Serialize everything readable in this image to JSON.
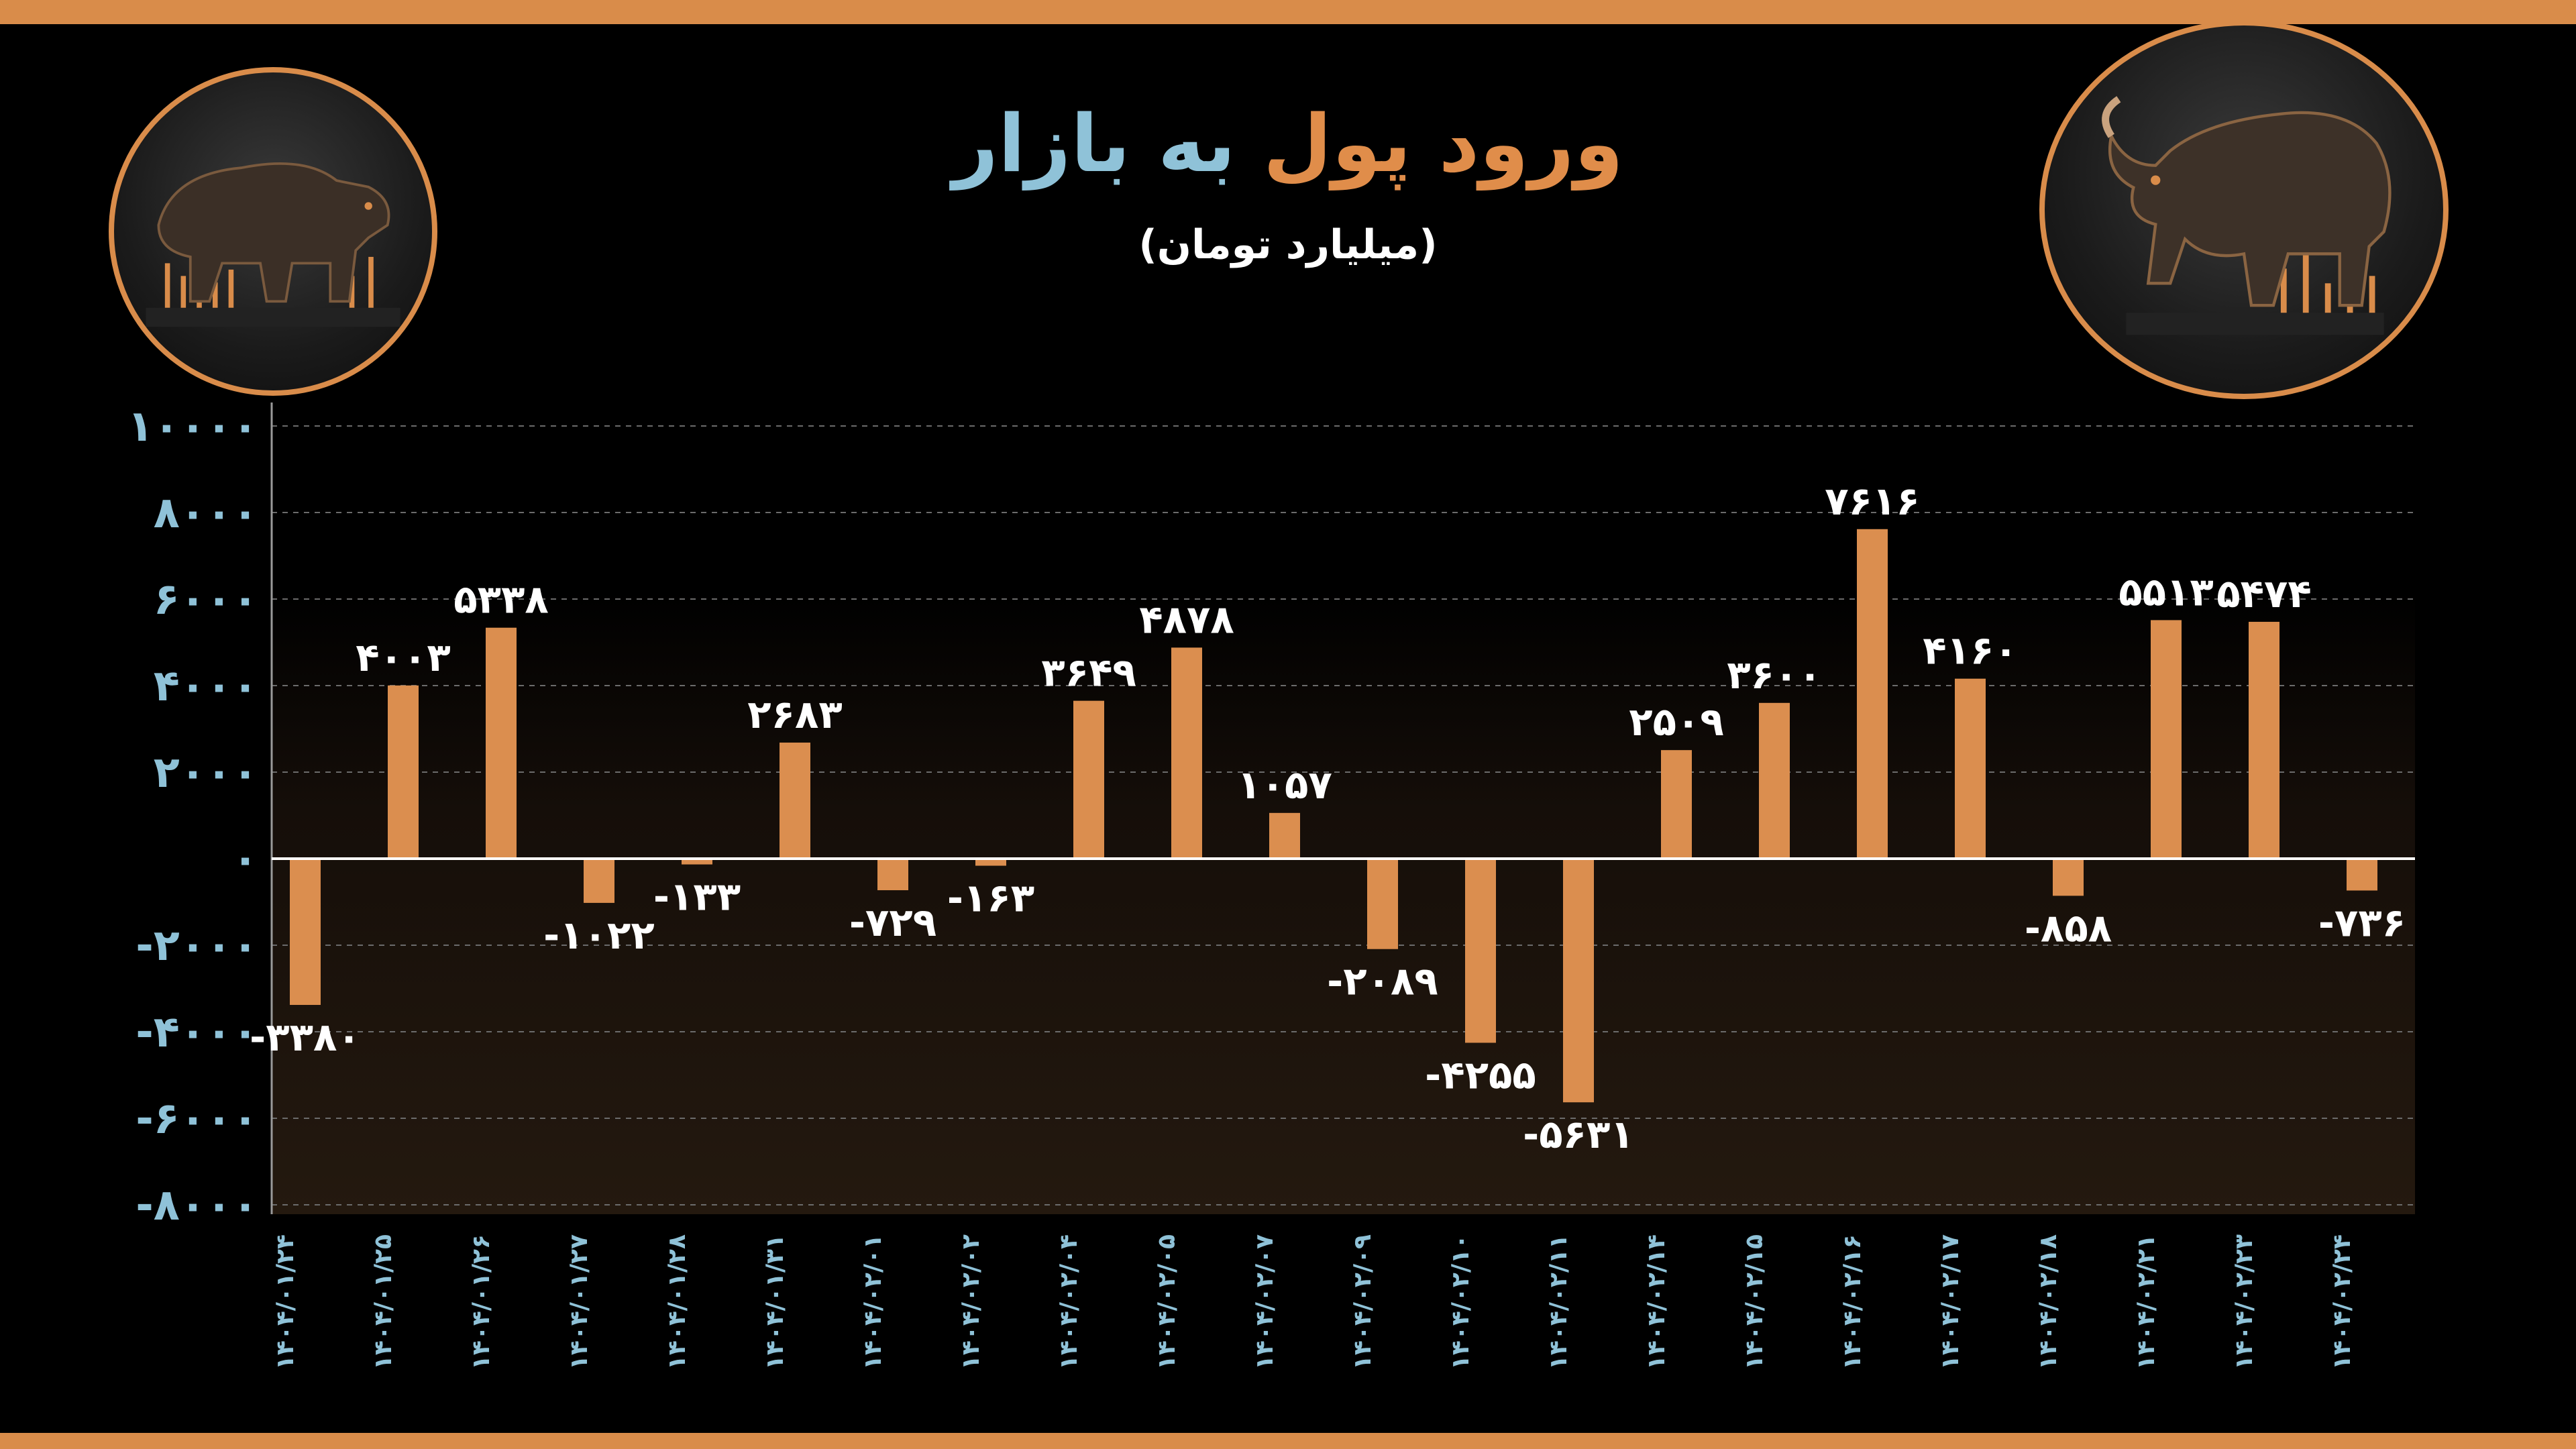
{
  "title_part1": "ورود پول",
  "title_part2": "به بازار",
  "subtitle": "(میلیارد تومان)",
  "colors": {
    "background": "#000000",
    "frame": "#d98c4a",
    "bar": "#db8e4f",
    "axis_label": "#8fc2d8",
    "value_label": "#ffffff",
    "title_accent": "#e08d4a",
    "title_secondary": "#8fc2d8"
  },
  "images": {
    "left": "bear-medallion",
    "right": "bull-medallion"
  },
  "chart_data": {
    "type": "bar",
    "categories": [
      "۱۴۰۴/۰۱/۲۴",
      "۱۴۰۴/۰۱/۲۵",
      "۱۴۰۴/۰۱/۲۶",
      "۱۴۰۴/۰۱/۲۷",
      "۱۴۰۴/۰۱/۲۸",
      "۱۴۰۴/۰۱/۳۱",
      "۱۴۰۴/۰۲/۰۱",
      "۱۴۰۴/۰۲/۰۲",
      "۱۴۰۴/۰۲/۰۴",
      "۱۴۰۴/۰۲/۰۵",
      "۱۴۰۴/۰۲/۰۷",
      "۱۴۰۴/۰۲/۰۹",
      "۱۴۰۴/۰۲/۱۰",
      "۱۴۰۴/۰۲/۱۱",
      "۱۴۰۴/۰۲/۱۴",
      "۱۴۰۴/۰۲/۱۵",
      "۱۴۰۴/۰۲/۱۶",
      "۱۴۰۴/۰۲/۱۷",
      "۱۴۰۴/۰۲/۱۸",
      "۱۴۰۴/۰۲/۲۱",
      "۱۴۰۴/۰۲/۲۳",
      "۱۴۰۴/۰۲/۲۴"
    ],
    "values": [
      -3380,
      4003,
      5338,
      -1022,
      -133,
      2683,
      -729,
      -163,
      3649,
      4878,
      1057,
      -2089,
      -4255,
      -5631,
      2509,
      3600,
      7616,
      4160,
      -858,
      5513,
      5474,
      -736
    ],
    "value_labels": [
      "-۳۳۸۰",
      "۴۰۰۳",
      "۵۳۳۸",
      "-۱۰۲۲",
      "-۱۳۳",
      "۲۶۸۳",
      "-۷۲۹",
      "-۱۶۳",
      "۳۶۴۹",
      "۴۸۷۸",
      "۱۰۵۷",
      "-۲۰۸۹",
      "-۴۲۵۵",
      "-۵۶۳۱",
      "۲۵۰۹",
      "۳۶۰۰",
      "۷۶۱۶",
      "۴۱۶۰",
      "-۸۵۸",
      "۵۵۱۳",
      "۵۴۷۴",
      "-۷۳۶"
    ],
    "yticks": [
      10000,
      8000,
      6000,
      4000,
      2000,
      0,
      -2000,
      -4000,
      -6000,
      -8000
    ],
    "ytick_labels": [
      "۱۰۰۰۰",
      "۸۰۰۰",
      "۶۰۰۰",
      "۴۰۰۰",
      "۲۰۰۰",
      "۰",
      "-۲۰۰۰",
      "-۴۰۰۰",
      "-۶۰۰۰",
      "-۸۰۰۰"
    ],
    "ylim": [
      -8000,
      10000
    ],
    "grid": true,
    "legend": "none",
    "xlabel": "",
    "ylabel": ""
  }
}
